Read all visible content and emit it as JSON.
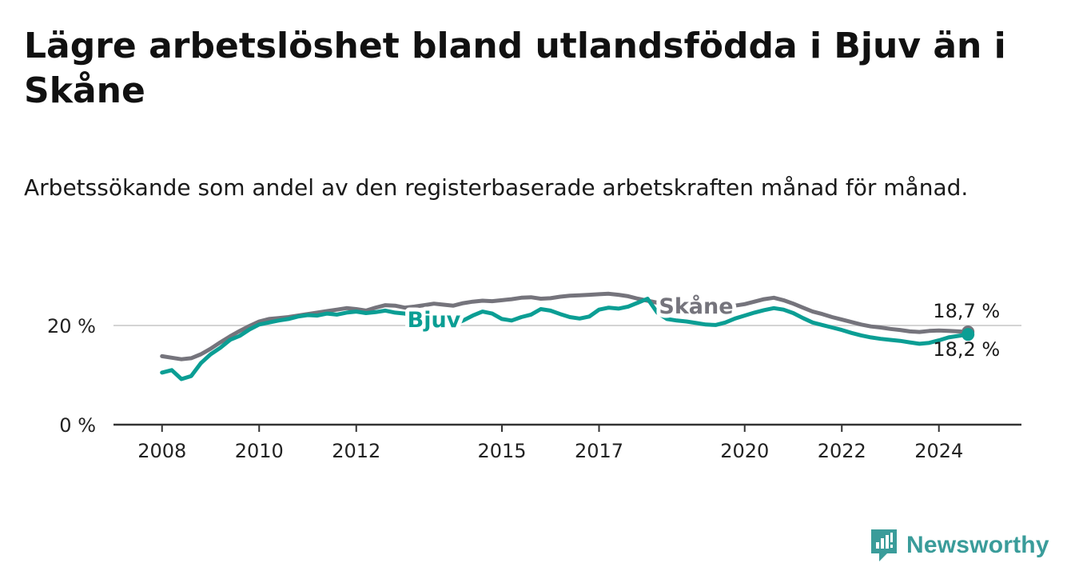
{
  "title": "Lägre arbetslöshet bland utlandsfödda i Bjuv än i Skåne",
  "subtitle": "Arbetssökande som andel av den registerbaserade arbetskraften månad för månad.",
  "brand": {
    "name": "Newsworthy",
    "color": "#3a9c9a"
  },
  "colors": {
    "bjuv": "#0b9e94",
    "skane": "#75747c",
    "axis": "#333333",
    "grid": "#d4d4d4"
  },
  "chart_data": {
    "type": "line",
    "title": "Lägre arbetslöshet bland utlandsfödda i Bjuv än i Skåne",
    "xlabel": "",
    "ylabel": "",
    "ylim": [
      0,
      30
    ],
    "xlim": [
      2007.0,
      2025.7
    ],
    "x_ticks": [
      2008,
      2010,
      2012,
      2015,
      2017,
      2020,
      2022,
      2024
    ],
    "x_tick_labels": [
      "2008",
      "2010",
      "2012",
      "2015",
      "2017",
      "2020",
      "2022",
      "2024"
    ],
    "y_ticks": [
      0,
      20
    ],
    "y_tick_labels": [
      "0 %",
      "20 %"
    ],
    "grid": true,
    "series": [
      {
        "name": "Skåne",
        "label": "Skåne",
        "end_label": "18,7 %",
        "x": [
          2008.0,
          2008.2,
          2008.4,
          2008.6,
          2008.8,
          2009.0,
          2009.2,
          2009.4,
          2009.6,
          2009.8,
          2010.0,
          2010.2,
          2010.4,
          2010.6,
          2010.8,
          2011.0,
          2011.2,
          2011.4,
          2011.6,
          2011.8,
          2012.0,
          2012.2,
          2012.4,
          2012.6,
          2012.8,
          2013.0,
          2013.2,
          2013.4,
          2013.6,
          2013.8,
          2014.0,
          2014.2,
          2014.4,
          2014.6,
          2014.8,
          2015.0,
          2015.2,
          2015.4,
          2015.6,
          2015.8,
          2016.0,
          2016.2,
          2016.4,
          2016.6,
          2016.8,
          2017.0,
          2017.2,
          2017.4,
          2017.6,
          2017.8,
          2018.0,
          2018.2,
          2018.4,
          2018.6,
          2018.8,
          2019.0,
          2019.2,
          2019.4,
          2019.6,
          2019.8,
          2020.0,
          2020.2,
          2020.4,
          2020.6,
          2020.8,
          2021.0,
          2021.2,
          2021.4,
          2021.6,
          2021.8,
          2022.0,
          2022.2,
          2022.4,
          2022.6,
          2022.8,
          2023.0,
          2023.2,
          2023.4,
          2023.6,
          2023.8,
          2024.0,
          2024.2,
          2024.4,
          2024.6
        ],
        "values": [
          13.8,
          13.5,
          13.2,
          13.4,
          14.2,
          15.3,
          16.6,
          17.8,
          18.9,
          19.9,
          20.8,
          21.3,
          21.5,
          21.7,
          22.0,
          22.3,
          22.6,
          22.9,
          23.2,
          23.5,
          23.3,
          23.0,
          23.6,
          24.1,
          24.0,
          23.6,
          23.8,
          24.1,
          24.4,
          24.2,
          24.0,
          24.5,
          24.8,
          25.0,
          24.9,
          25.1,
          25.3,
          25.6,
          25.7,
          25.4,
          25.5,
          25.8,
          26.0,
          26.1,
          26.2,
          26.3,
          26.4,
          26.2,
          25.9,
          25.4,
          25.0,
          24.6,
          24.3,
          24.1,
          24.0,
          23.8,
          23.6,
          23.5,
          23.7,
          24.0,
          24.3,
          24.8,
          25.3,
          25.6,
          25.1,
          24.4,
          23.6,
          22.8,
          22.3,
          21.7,
          21.2,
          20.7,
          20.2,
          19.8,
          19.6,
          19.3,
          19.1,
          18.8,
          18.7,
          18.9,
          19.0,
          18.9,
          18.8,
          18.7
        ]
      },
      {
        "name": "Bjuv",
        "label": "Bjuv",
        "end_label": "18,2 %",
        "x": [
          2008.0,
          2008.2,
          2008.4,
          2008.6,
          2008.8,
          2009.0,
          2009.2,
          2009.4,
          2009.6,
          2009.8,
          2010.0,
          2010.2,
          2010.4,
          2010.6,
          2010.8,
          2011.0,
          2011.2,
          2011.4,
          2011.6,
          2011.8,
          2012.0,
          2012.2,
          2012.4,
          2012.6,
          2012.8,
          2013.0,
          2013.2,
          2013.4,
          2013.6,
          2013.8,
          2014.0,
          2014.2,
          2014.4,
          2014.6,
          2014.8,
          2015.0,
          2015.2,
          2015.4,
          2015.6,
          2015.8,
          2016.0,
          2016.2,
          2016.4,
          2016.6,
          2016.8,
          2017.0,
          2017.2,
          2017.4,
          2017.6,
          2017.8,
          2018.0,
          2018.2,
          2018.4,
          2018.6,
          2018.8,
          2019.0,
          2019.2,
          2019.4,
          2019.6,
          2019.8,
          2020.0,
          2020.2,
          2020.4,
          2020.6,
          2020.8,
          2021.0,
          2021.2,
          2021.4,
          2021.6,
          2021.8,
          2022.0,
          2022.2,
          2022.4,
          2022.6,
          2022.8,
          2023.0,
          2023.2,
          2023.4,
          2023.6,
          2023.8,
          2024.0,
          2024.2,
          2024.4,
          2024.6
        ],
        "values": [
          10.5,
          11.0,
          9.2,
          9.8,
          12.4,
          14.2,
          15.5,
          17.1,
          17.9,
          19.2,
          20.2,
          20.6,
          21.0,
          21.3,
          21.8,
          22.1,
          22.0,
          22.4,
          22.2,
          22.6,
          22.8,
          22.5,
          22.7,
          23.0,
          22.6,
          22.4,
          21.8,
          21.0,
          20.4,
          19.8,
          20.2,
          21.0,
          22.0,
          22.8,
          22.4,
          21.3,
          21.0,
          21.7,
          22.2,
          23.3,
          23.0,
          22.3,
          21.7,
          21.4,
          21.8,
          23.2,
          23.6,
          23.4,
          23.8,
          24.6,
          25.4,
          22.6,
          21.3,
          21.0,
          20.8,
          20.5,
          20.2,
          20.1,
          20.6,
          21.4,
          22.0,
          22.6,
          23.1,
          23.5,
          23.2,
          22.5,
          21.5,
          20.6,
          20.1,
          19.6,
          19.1,
          18.5,
          18.0,
          17.6,
          17.3,
          17.1,
          16.9,
          16.6,
          16.3,
          16.5,
          17.0,
          17.6,
          17.9,
          18.2
        ]
      }
    ]
  }
}
